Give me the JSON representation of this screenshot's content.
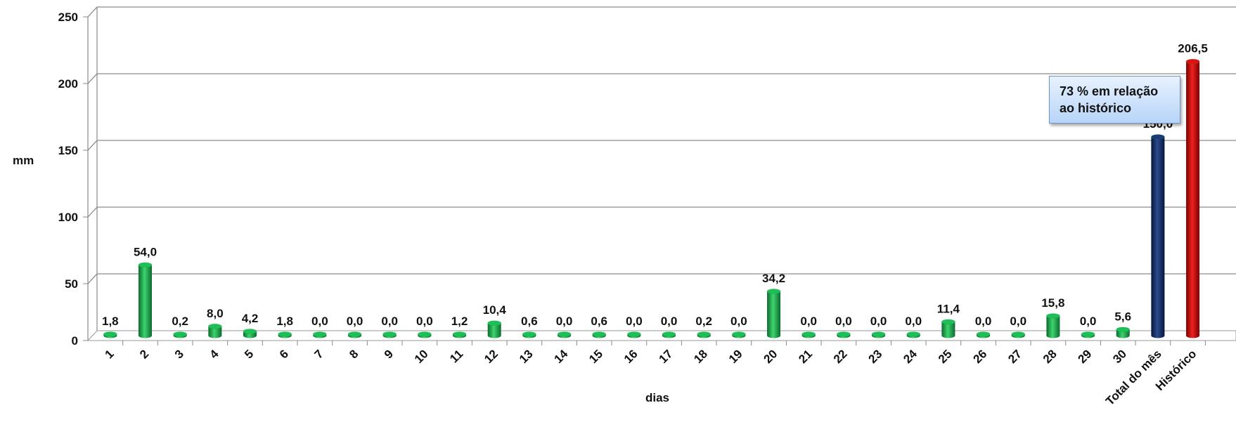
{
  "chart_data": {
    "type": "bar",
    "title": "",
    "xlabel": "dias",
    "ylabel": "mm",
    "ylim": [
      0,
      250
    ],
    "yticks": [
      "0",
      "50",
      "100",
      "150",
      "200",
      "250"
    ],
    "grid": true,
    "categories": [
      "1",
      "2",
      "3",
      "4",
      "5",
      "6",
      "7",
      "8",
      "9",
      "10",
      "11",
      "12",
      "13",
      "14",
      "15",
      "16",
      "17",
      "18",
      "19",
      "20",
      "21",
      "22",
      "23",
      "24",
      "25",
      "26",
      "27",
      "28",
      "29",
      "30",
      "Total do mês",
      "Histórico"
    ],
    "values": [
      1.8,
      54.0,
      0.2,
      8.0,
      4.2,
      1.8,
      0.0,
      0.0,
      0.0,
      0.0,
      1.2,
      10.4,
      0.6,
      0.0,
      0.6,
      0.0,
      0.0,
      0.2,
      0.0,
      34.2,
      0.0,
      0.0,
      0.0,
      0.0,
      11.4,
      0.0,
      0.0,
      15.8,
      0.0,
      5.6,
      150.0,
      206.5
    ],
    "data_labels": [
      "1,8",
      "54,0",
      "0,2",
      "8,0",
      "4,2",
      "1,8",
      "0,0",
      "0,0",
      "0,0",
      "0,0",
      "1,2",
      "10,4",
      "0,6",
      "0,0",
      "0,6",
      "0,0",
      "0,0",
      "0,2",
      "0,0",
      "34,2",
      "0,0",
      "0,0",
      "0,0",
      "0,0",
      "11,4",
      "0,0",
      "0,0",
      "15,8",
      "0,0",
      "5,6",
      "150,0",
      "206,5"
    ],
    "bar_colors": {
      "daily": "#16a34a",
      "total": "#10265c",
      "historic": "#c00000"
    },
    "annotation": "73 % em relação\nao histórico"
  }
}
